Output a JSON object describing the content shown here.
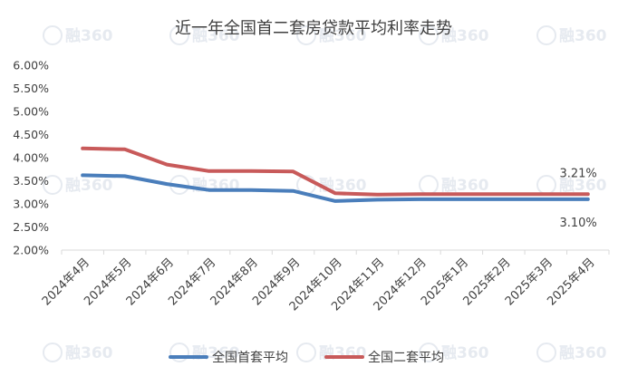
{
  "chart_data": {
    "type": "line",
    "title": "近一年全国首二套房贷款平均利率走势",
    "xlabel": "",
    "ylabel": "",
    "categories": [
      "2024年4月",
      "2024年5月",
      "2024年6月",
      "2024年7月",
      "2024年8月",
      "2024年9月",
      "2024年10月",
      "2024年11月",
      "2024年12月",
      "2025年1月",
      "2025年2月",
      "2025年3月",
      "2025年4月"
    ],
    "ylim": [
      0.02,
      0.06
    ],
    "ytick_step": 0.005,
    "ytick_labels": [
      "2.00%",
      "2.50%",
      "3.00%",
      "3.50%",
      "4.00%",
      "4.50%",
      "5.00%",
      "5.50%",
      "6.00%"
    ],
    "grid": {
      "y": false,
      "x": false
    },
    "legend_position": "bottom",
    "series": [
      {
        "name": "全国首套平均",
        "color": "#4a7ebb",
        "values": [
          0.0362,
          0.036,
          0.0343,
          0.033,
          0.033,
          0.0328,
          0.0306,
          0.0309,
          0.031,
          0.031,
          0.031,
          0.031,
          0.031
        ]
      },
      {
        "name": "全国二套平均",
        "color": "#c85a5a",
        "values": [
          0.042,
          0.0418,
          0.0385,
          0.0371,
          0.0371,
          0.037,
          0.0323,
          0.032,
          0.0321,
          0.0321,
          0.0321,
          0.0321,
          0.0321
        ]
      }
    ],
    "annotations": [
      {
        "series": 1,
        "index": 12,
        "text": "3.21%"
      },
      {
        "series": 0,
        "index": 12,
        "text": "3.10%"
      }
    ]
  },
  "watermark": {
    "text": "融360",
    "color": "#e6eaf0"
  }
}
